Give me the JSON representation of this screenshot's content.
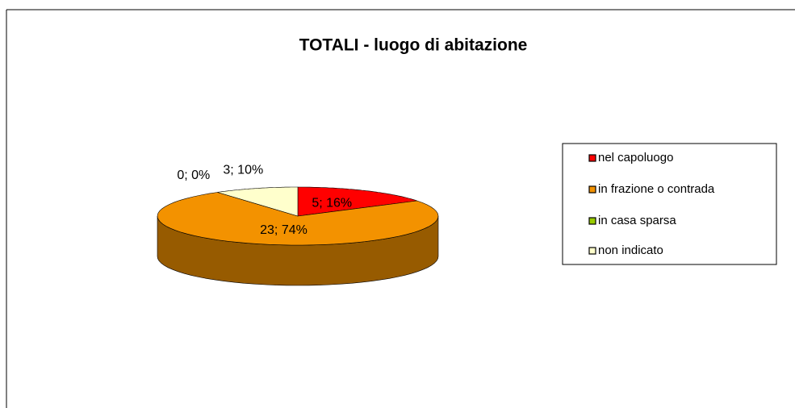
{
  "chart_data": {
    "type": "pie",
    "title": "TOTALI - luogo di abitazione",
    "categories": [
      "nel capoluogo",
      "in frazione o contrada",
      "in casa sparsa",
      "non indicato"
    ],
    "values": [
      5,
      23,
      0,
      3
    ],
    "value_labels": [
      "5; 16%",
      "23; 74%",
      "0; 0%",
      "3; 10%"
    ],
    "colors": [
      "#ff0000",
      "#f39200",
      "#99cc00",
      "#ffffcc"
    ],
    "legend": "right"
  }
}
